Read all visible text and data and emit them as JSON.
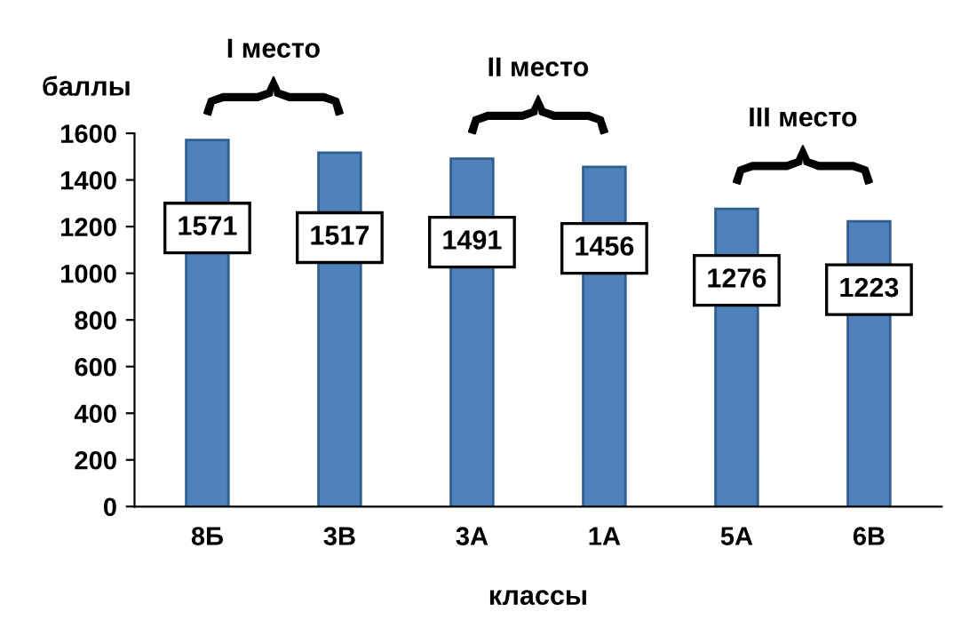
{
  "chart_data": {
    "type": "bar",
    "categories": [
      "8Б",
      "3В",
      "3А",
      "1А",
      "5А",
      "6В"
    ],
    "values": [
      1571,
      1517,
      1491,
      1456,
      1276,
      1223
    ],
    "color": "#4f81bd",
    "data_labels": true,
    "xlabel": "классы",
    "ylabel": "баллы",
    "ylim": [
      0,
      1600
    ],
    "yticks": [
      0,
      200,
      400,
      600,
      800,
      1000,
      1200,
      1400,
      1600
    ],
    "grid": false,
    "annotations": [
      "I место",
      "II место",
      "III место"
    ]
  }
}
